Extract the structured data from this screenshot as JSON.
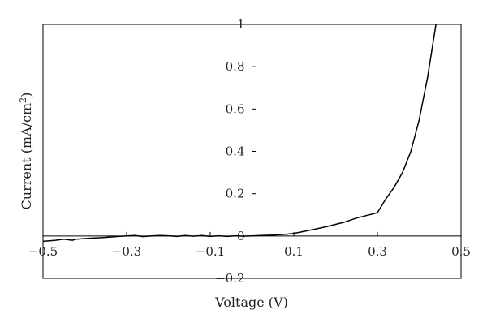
{
  "chart_data": {
    "type": "line",
    "title": "",
    "xlabel": "Voltage (V)",
    "ylabel_main": "Current (mA/cm",
    "ylabel_sup": "2",
    "ylabel_close": ")",
    "xlim": [
      -0.5,
      0.5
    ],
    "ylim": [
      -0.2,
      1
    ],
    "grid": false,
    "x_ticks": [
      -0.5,
      -0.3,
      -0.1,
      0.1,
      0.3,
      0.5
    ],
    "x_tick_labels": [
      "−0.5",
      "−0.3",
      "−0.1",
      "0.1",
      "0.3",
      "0.5"
    ],
    "y_ticks": [
      -0.2,
      0,
      0.2,
      0.4,
      0.6,
      0.8,
      1
    ],
    "y_tick_labels": [
      "−0.2",
      "0",
      "0.2",
      "0.4",
      "0.6",
      "0.8",
      "1"
    ],
    "series": [
      {
        "color": "#000000",
        "x": [
          -0.5,
          -0.47,
          -0.45,
          -0.43,
          -0.42,
          -0.4,
          -0.38,
          -0.36,
          -0.34,
          -0.32,
          -0.3,
          -0.28,
          -0.26,
          -0.24,
          -0.22,
          -0.2,
          -0.18,
          -0.16,
          -0.14,
          -0.12,
          -0.1,
          -0.08,
          -0.06,
          -0.04,
          -0.02,
          0,
          0.02,
          0.05,
          0.08,
          0.1,
          0.12,
          0.15,
          0.18,
          0.2,
          0.22,
          0.25,
          0.28,
          0.3,
          0.32,
          0.34,
          0.36,
          0.38,
          0.4,
          0.42,
          0.44
        ],
        "y": [
          -0.025,
          -0.02,
          -0.015,
          -0.02,
          -0.015,
          -0.012,
          -0.01,
          -0.008,
          -0.005,
          -0.002,
          0,
          0.002,
          -0.003,
          0,
          0.002,
          0.001,
          -0.002,
          0.002,
          -0.001,
          0.002,
          -0.002,
          0.001,
          -0.002,
          0.001,
          -0.001,
          0,
          0.002,
          0.004,
          0.008,
          0.012,
          0.02,
          0.032,
          0.045,
          0.055,
          0.065,
          0.085,
          0.1,
          0.11,
          0.175,
          0.23,
          0.3,
          0.4,
          0.55,
          0.75,
          1.0
        ]
      }
    ]
  }
}
